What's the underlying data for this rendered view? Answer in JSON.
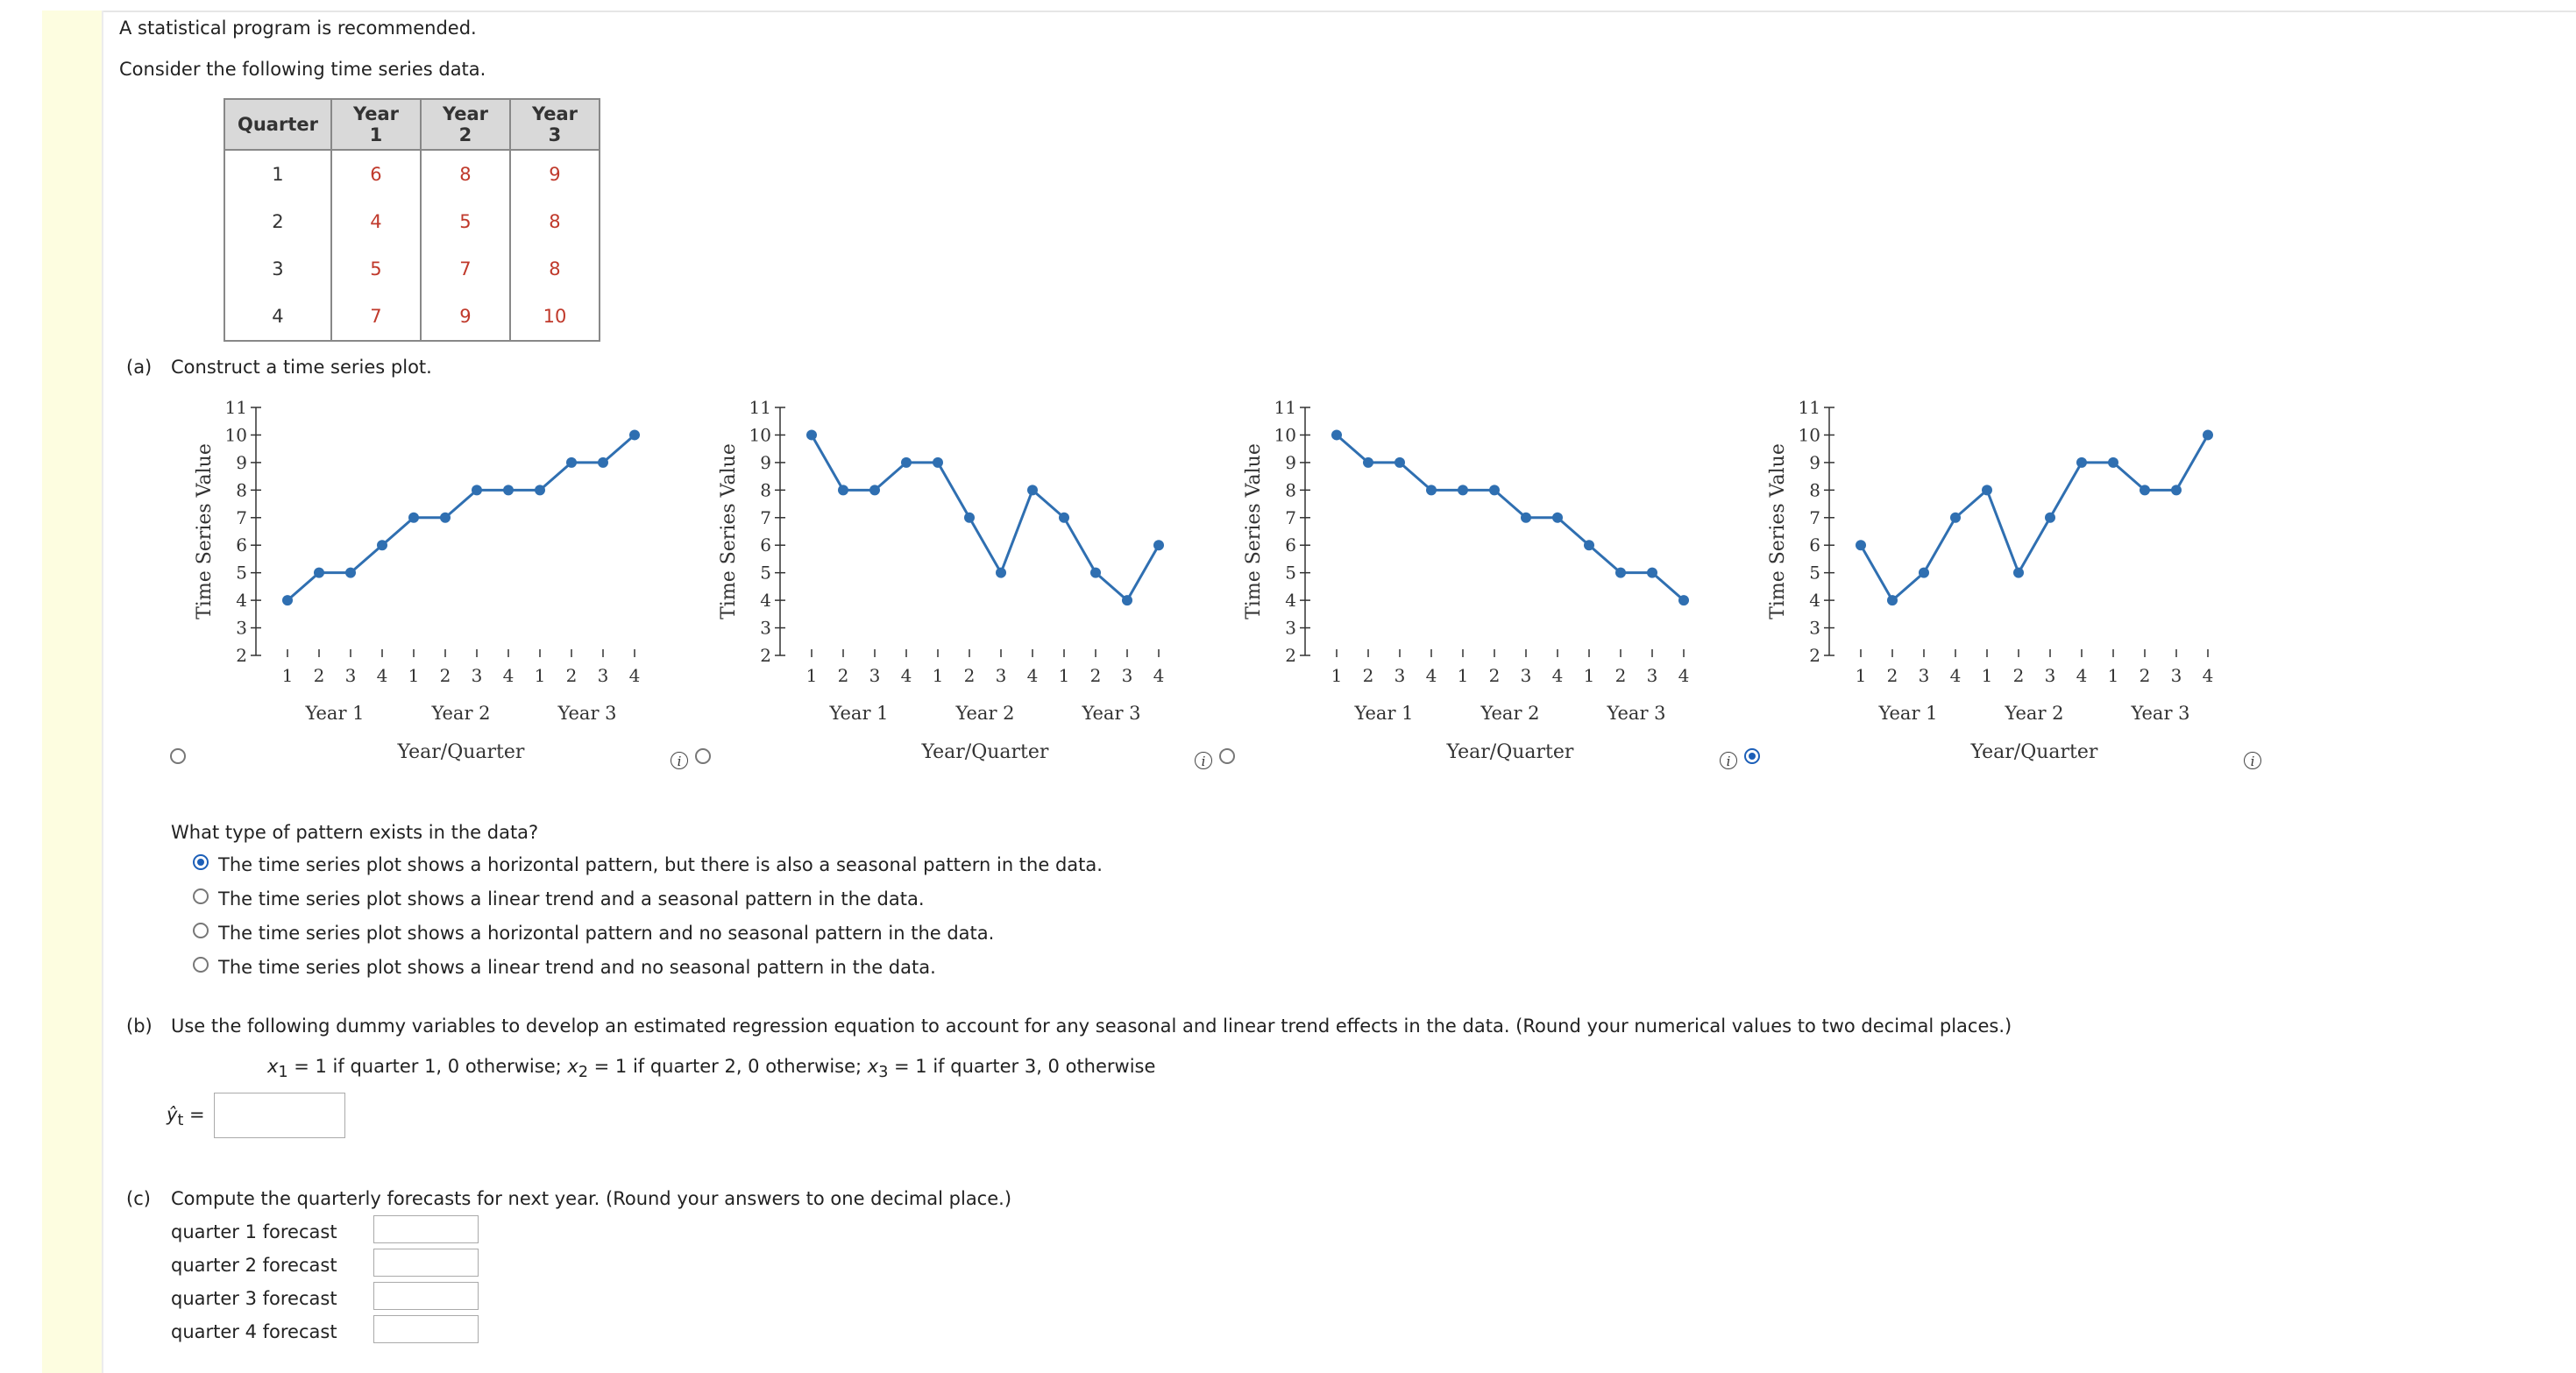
{
  "intro": {
    "line1": "A statistical program is recommended.",
    "line2": "Consider the following time series data."
  },
  "table": {
    "headers": [
      "Quarter",
      "Year 1",
      "Year 2",
      "Year 3"
    ],
    "rows": [
      [
        "1",
        "6",
        "8",
        "9"
      ],
      [
        "2",
        "4",
        "5",
        "8"
      ],
      [
        "3",
        "5",
        "7",
        "8"
      ],
      [
        "4",
        "7",
        "9",
        "10"
      ]
    ]
  },
  "part_a": {
    "label": "(a)",
    "prompt": "Construct a time series plot.",
    "selected_plot": 4,
    "info_icon": "info-icon",
    "question": "What type of pattern exists in the data?",
    "options": [
      {
        "text": "The time series plot shows a horizontal pattern, but there is also a seasonal pattern in the data.",
        "selected": true
      },
      {
        "text": "The time series plot shows a linear trend and a seasonal pattern in the data.",
        "selected": false
      },
      {
        "text": "The time series plot shows a horizontal pattern and no seasonal pattern in the data.",
        "selected": false
      },
      {
        "text": "The time series plot shows a linear trend and no seasonal pattern in the data.",
        "selected": false
      }
    ]
  },
  "chart_data": [
    {
      "type": "line",
      "values": [
        4,
        5,
        5,
        6,
        7,
        7,
        8,
        8,
        8,
        9,
        9,
        10
      ],
      "ylabel": "Time Series Value",
      "xlabel": "Year/Quarter",
      "quarter_ticks": [
        "1",
        "2",
        "3",
        "4",
        "1",
        "2",
        "3",
        "4",
        "1",
        "2",
        "3",
        "4"
      ],
      "year_labels": [
        "Year 1",
        "Year 2",
        "Year 3"
      ],
      "ylim": [
        2,
        11
      ],
      "yticks": [
        "2",
        "3",
        "4",
        "5",
        "6",
        "7",
        "8",
        "9",
        "10",
        "11"
      ]
    },
    {
      "type": "line",
      "values": [
        10,
        8,
        8,
        9,
        9,
        7,
        5,
        8,
        7,
        5,
        4,
        6
      ],
      "ylabel": "Time Series Value",
      "xlabel": "Year/Quarter",
      "quarter_ticks": [
        "1",
        "2",
        "3",
        "4",
        "1",
        "2",
        "3",
        "4",
        "1",
        "2",
        "3",
        "4"
      ],
      "year_labels": [
        "Year 1",
        "Year 2",
        "Year 3"
      ],
      "ylim": [
        2,
        11
      ],
      "yticks": [
        "2",
        "3",
        "4",
        "5",
        "6",
        "7",
        "8",
        "9",
        "10",
        "11"
      ]
    },
    {
      "type": "line",
      "values": [
        10,
        9,
        9,
        8,
        8,
        8,
        7,
        7,
        6,
        5,
        5,
        4
      ],
      "ylabel": "Time Series Value",
      "xlabel": "Year/Quarter",
      "quarter_ticks": [
        "1",
        "2",
        "3",
        "4",
        "1",
        "2",
        "3",
        "4",
        "1",
        "2",
        "3",
        "4"
      ],
      "year_labels": [
        "Year 1",
        "Year 2",
        "Year 3"
      ],
      "ylim": [
        2,
        11
      ],
      "yticks": [
        "2",
        "3",
        "4",
        "5",
        "6",
        "7",
        "8",
        "9",
        "10",
        "11"
      ]
    },
    {
      "type": "line",
      "values": [
        6,
        4,
        5,
        7,
        8,
        5,
        7,
        9,
        9,
        8,
        8,
        10
      ],
      "ylabel": "Time Series Value",
      "xlabel": "Year/Quarter",
      "quarter_ticks": [
        "1",
        "2",
        "3",
        "4",
        "1",
        "2",
        "3",
        "4",
        "1",
        "2",
        "3",
        "4"
      ],
      "year_labels": [
        "Year 1",
        "Year 2",
        "Year 3"
      ],
      "ylim": [
        2,
        11
      ],
      "yticks": [
        "2",
        "3",
        "4",
        "5",
        "6",
        "7",
        "8",
        "9",
        "10",
        "11"
      ]
    }
  ],
  "part_b": {
    "label": "(b)",
    "prompt": "Use the following dummy variables to develop an estimated regression equation to account for any seasonal and linear trend effects in the data. (Round your numerical values to two decimal places.)",
    "x1": "x",
    "x1_sub": "1",
    "x1_def": " = 1 if quarter 1, 0 otherwise; ",
    "x2": "x",
    "x2_sub": "2",
    "x2_def": " = 1 if quarter 2, 0 otherwise; ",
    "x3": "x",
    "x3_sub": "3",
    "x3_def": " = 1 if quarter 3, 0 otherwise",
    "yhat": "ŷ",
    "yhat_sub": "t",
    "equals": "=",
    "answer": ""
  },
  "part_c": {
    "label": "(c)",
    "prompt": "Compute the quarterly forecasts for next year. (Round your answers to one decimal place.)",
    "forecasts": [
      {
        "label": "quarter 1 forecast",
        "value": ""
      },
      {
        "label": "quarter 2 forecast",
        "value": ""
      },
      {
        "label": "quarter 3 forecast",
        "value": ""
      },
      {
        "label": "quarter 4 forecast",
        "value": ""
      }
    ]
  },
  "colors": {
    "line": "#2f6fb1",
    "radio_selected": "#1c5fb8",
    "table_values": "#c0392b",
    "gutter": "#fdfde0"
  }
}
